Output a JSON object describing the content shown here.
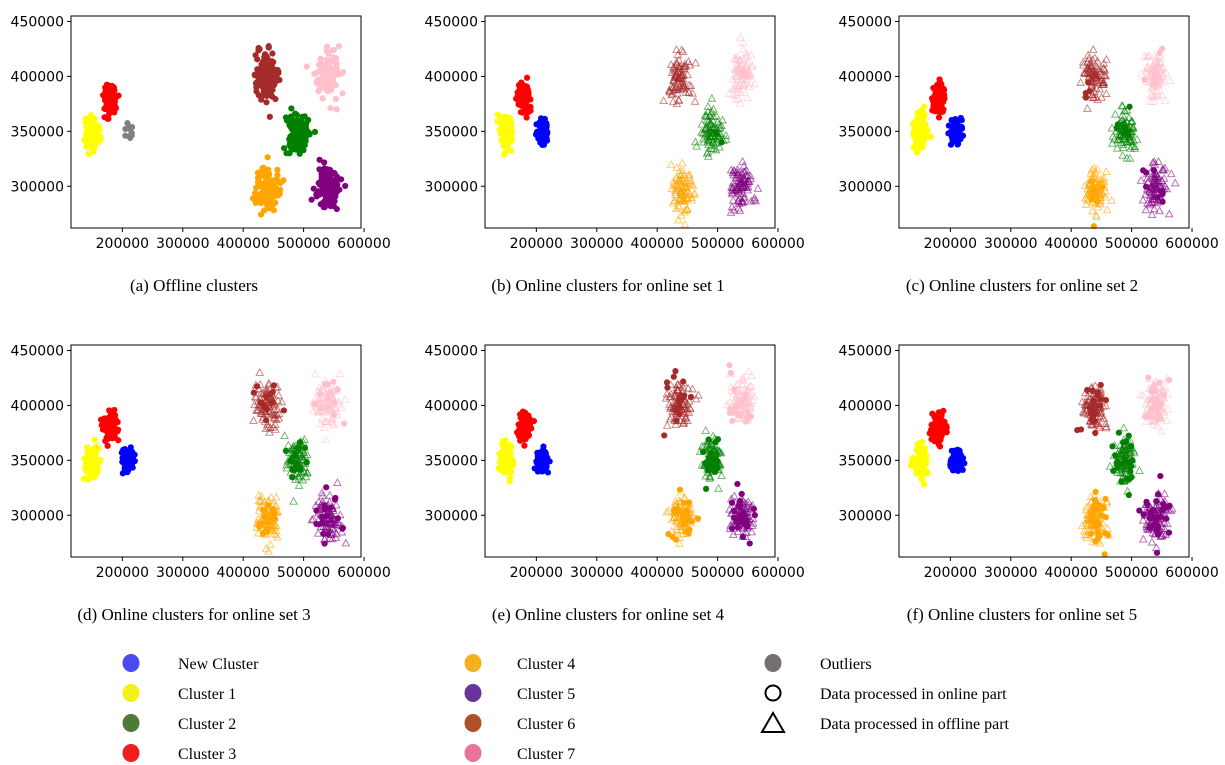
{
  "chart_data": [
    {
      "type": "scatter",
      "caption": "(a)  Offline clusters",
      "xlim": [
        115000,
        595000
      ],
      "ylim": [
        262000,
        455000
      ],
      "x_ticks": [
        200000,
        300000,
        400000,
        500000,
        600000
      ],
      "y_ticks": [
        300000,
        350000,
        400000,
        450000
      ],
      "clusters": [
        {
          "name": "Cluster 1",
          "cx": 150000,
          "cy": 349000,
          "sx": 5000,
          "sy": 7000,
          "n": 140,
          "offline": false,
          "online": true,
          "online_n": 140
        },
        {
          "name": "Cluster 3",
          "cx": 180000,
          "cy": 380000,
          "sx": 5000,
          "sy": 6000,
          "n": 130,
          "offline": false,
          "online": true,
          "online_n": 130
        },
        {
          "name": "Outliers",
          "cx": 210000,
          "cy": 350000,
          "sx": 3500,
          "sy": 5000,
          "n": 14,
          "offline": false,
          "online": true,
          "online_n": 14
        },
        {
          "name": "Cluster 6",
          "cx": 437000,
          "cy": 400000,
          "sx": 10000,
          "sy": 11000,
          "n": 120,
          "offline": false,
          "online": true,
          "online_n": 120
        },
        {
          "name": "Cluster 7",
          "cx": 540000,
          "cy": 402000,
          "sx": 10000,
          "sy": 10000,
          "n": 120,
          "offline": false,
          "online": true,
          "online_n": 120
        },
        {
          "name": "Cluster 2",
          "cx": 490000,
          "cy": 350000,
          "sx": 9000,
          "sy": 10000,
          "n": 120,
          "offline": false,
          "online": true,
          "online_n": 120
        },
        {
          "name": "Cluster 4",
          "cx": 440000,
          "cy": 297000,
          "sx": 9000,
          "sy": 10000,
          "n": 120,
          "offline": false,
          "online": true,
          "online_n": 120
        },
        {
          "name": "Cluster 5",
          "cx": 540000,
          "cy": 299000,
          "sx": 10000,
          "sy": 10000,
          "n": 120,
          "offline": false,
          "online": true,
          "online_n": 120
        }
      ]
    },
    {
      "type": "scatter",
      "caption": "(b)  Online clusters for online set 1",
      "xlim": [
        115000,
        595000
      ],
      "ylim": [
        262000,
        455000
      ],
      "x_ticks": [
        200000,
        300000,
        400000,
        500000,
        600000
      ],
      "y_ticks": [
        300000,
        350000,
        400000,
        450000
      ],
      "clusters": [
        {
          "name": "Cluster 1",
          "cx": 150000,
          "cy": 349000,
          "sx": 5000,
          "sy": 7000,
          "n": 140,
          "offline": false,
          "online": true,
          "online_n": 140
        },
        {
          "name": "Cluster 3",
          "cx": 180000,
          "cy": 380000,
          "sx": 5000,
          "sy": 6000,
          "n": 130,
          "offline": false,
          "online": true,
          "online_n": 130
        },
        {
          "name": "New Cluster",
          "cx": 210000,
          "cy": 350000,
          "sx": 4500,
          "sy": 5000,
          "n": 90,
          "offline": false,
          "online": true,
          "online_n": 90
        },
        {
          "name": "Cluster 6",
          "cx": 437000,
          "cy": 400000,
          "sx": 10000,
          "sy": 11000,
          "n": 90,
          "offline": true,
          "online": false,
          "online_n": 0
        },
        {
          "name": "Cluster 7",
          "cx": 540000,
          "cy": 402000,
          "sx": 10000,
          "sy": 10000,
          "n": 90,
          "offline": true,
          "online": false,
          "online_n": 0
        },
        {
          "name": "Cluster 2",
          "cx": 490000,
          "cy": 350000,
          "sx": 9000,
          "sy": 10000,
          "n": 90,
          "offline": true,
          "online": true,
          "online_n": 2
        },
        {
          "name": "Cluster 4",
          "cx": 440000,
          "cy": 297000,
          "sx": 9000,
          "sy": 10000,
          "n": 90,
          "offline": true,
          "online": false,
          "online_n": 0
        },
        {
          "name": "Cluster 5",
          "cx": 540000,
          "cy": 299000,
          "sx": 10000,
          "sy": 10000,
          "n": 90,
          "offline": true,
          "online": false,
          "online_n": 0
        }
      ]
    },
    {
      "type": "scatter",
      "caption": "(c)  Online clusters for online set 2",
      "xlim": [
        115000,
        595000
      ],
      "ylim": [
        262000,
        455000
      ],
      "x_ticks": [
        200000,
        300000,
        400000,
        500000,
        600000
      ],
      "y_ticks": [
        300000,
        350000,
        400000,
        450000
      ],
      "clusters": [
        {
          "name": "Cluster 1",
          "cx": 150000,
          "cy": 349000,
          "sx": 5000,
          "sy": 7000,
          "n": 140,
          "offline": false,
          "online": true,
          "online_n": 140
        },
        {
          "name": "Cluster 3",
          "cx": 180000,
          "cy": 380000,
          "sx": 5000,
          "sy": 6000,
          "n": 130,
          "offline": false,
          "online": true,
          "online_n": 130
        },
        {
          "name": "New Cluster",
          "cx": 210000,
          "cy": 350000,
          "sx": 4500,
          "sy": 5000,
          "n": 100,
          "offline": false,
          "online": true,
          "online_n": 100
        },
        {
          "name": "Cluster 6",
          "cx": 437000,
          "cy": 400000,
          "sx": 10000,
          "sy": 11000,
          "n": 90,
          "offline": true,
          "online": true,
          "online_n": 4
        },
        {
          "name": "Cluster 7",
          "cx": 540000,
          "cy": 402000,
          "sx": 10000,
          "sy": 10000,
          "n": 90,
          "offline": true,
          "online": true,
          "online_n": 3
        },
        {
          "name": "Cluster 2",
          "cx": 490000,
          "cy": 350000,
          "sx": 9000,
          "sy": 10000,
          "n": 90,
          "offline": true,
          "online": true,
          "online_n": 6
        },
        {
          "name": "Cluster 4",
          "cx": 440000,
          "cy": 297000,
          "sx": 9000,
          "sy": 10000,
          "n": 90,
          "offline": true,
          "online": true,
          "online_n": 6
        },
        {
          "name": "Cluster 5",
          "cx": 540000,
          "cy": 299000,
          "sx": 10000,
          "sy": 10000,
          "n": 90,
          "offline": true,
          "online": true,
          "online_n": 8
        }
      ]
    },
    {
      "type": "scatter",
      "caption": "(d)  Online clusters for online set 3",
      "xlim": [
        115000,
        595000
      ],
      "ylim": [
        262000,
        455000
      ],
      "x_ticks": [
        200000,
        300000,
        400000,
        500000,
        600000
      ],
      "y_ticks": [
        300000,
        350000,
        400000,
        450000
      ],
      "clusters": [
        {
          "name": "Cluster 1",
          "cx": 150000,
          "cy": 349000,
          "sx": 5000,
          "sy": 7000,
          "n": 140,
          "offline": false,
          "online": true,
          "online_n": 140
        },
        {
          "name": "Cluster 3",
          "cx": 180000,
          "cy": 380000,
          "sx": 5000,
          "sy": 6000,
          "n": 130,
          "offline": false,
          "online": true,
          "online_n": 130
        },
        {
          "name": "New Cluster",
          "cx": 210000,
          "cy": 350000,
          "sx": 4500,
          "sy": 5000,
          "n": 110,
          "offline": false,
          "online": true,
          "online_n": 110
        },
        {
          "name": "Cluster 6",
          "cx": 437000,
          "cy": 400000,
          "sx": 10000,
          "sy": 11000,
          "n": 90,
          "offline": true,
          "online": true,
          "online_n": 14
        },
        {
          "name": "Cluster 7",
          "cx": 540000,
          "cy": 402000,
          "sx": 10000,
          "sy": 10000,
          "n": 90,
          "offline": true,
          "online": true,
          "online_n": 12
        },
        {
          "name": "Cluster 2",
          "cx": 490000,
          "cy": 350000,
          "sx": 9000,
          "sy": 10000,
          "n": 90,
          "offline": true,
          "online": true,
          "online_n": 14
        },
        {
          "name": "Cluster 4",
          "cx": 440000,
          "cy": 297000,
          "sx": 9000,
          "sy": 10000,
          "n": 90,
          "offline": true,
          "online": true,
          "online_n": 16
        },
        {
          "name": "Cluster 5",
          "cx": 540000,
          "cy": 299000,
          "sx": 10000,
          "sy": 10000,
          "n": 90,
          "offline": true,
          "online": true,
          "online_n": 18
        }
      ]
    },
    {
      "type": "scatter",
      "caption": "(e)  Online clusters for online set 4",
      "xlim": [
        115000,
        595000
      ],
      "ylim": [
        262000,
        455000
      ],
      "x_ticks": [
        200000,
        300000,
        400000,
        500000,
        600000
      ],
      "y_ticks": [
        300000,
        350000,
        400000,
        450000
      ],
      "clusters": [
        {
          "name": "Cluster 1",
          "cx": 150000,
          "cy": 349000,
          "sx": 5000,
          "sy": 7000,
          "n": 140,
          "offline": false,
          "online": true,
          "online_n": 140
        },
        {
          "name": "Cluster 3",
          "cx": 180000,
          "cy": 380000,
          "sx": 5000,
          "sy": 6000,
          "n": 130,
          "offline": false,
          "online": true,
          "online_n": 130
        },
        {
          "name": "New Cluster",
          "cx": 210000,
          "cy": 350000,
          "sx": 4500,
          "sy": 5000,
          "n": 120,
          "offline": false,
          "online": true,
          "online_n": 120
        },
        {
          "name": "Cluster 6",
          "cx": 437000,
          "cy": 400000,
          "sx": 10000,
          "sy": 11000,
          "n": 90,
          "offline": true,
          "online": true,
          "online_n": 18
        },
        {
          "name": "Cluster 7",
          "cx": 540000,
          "cy": 402000,
          "sx": 10000,
          "sy": 10000,
          "n": 90,
          "offline": true,
          "online": true,
          "online_n": 16
        },
        {
          "name": "Cluster 2",
          "cx": 490000,
          "cy": 350000,
          "sx": 9000,
          "sy": 10000,
          "n": 90,
          "offline": true,
          "online": true,
          "online_n": 20
        },
        {
          "name": "Cluster 4",
          "cx": 440000,
          "cy": 297000,
          "sx": 9000,
          "sy": 10000,
          "n": 90,
          "offline": true,
          "online": true,
          "online_n": 22
        },
        {
          "name": "Cluster 5",
          "cx": 540000,
          "cy": 299000,
          "sx": 10000,
          "sy": 10000,
          "n": 90,
          "offline": true,
          "online": true,
          "online_n": 24
        }
      ]
    },
    {
      "type": "scatter",
      "caption": "(f)  Online clusters for online set 5",
      "xlim": [
        115000,
        595000
      ],
      "ylim": [
        262000,
        455000
      ],
      "x_ticks": [
        200000,
        300000,
        400000,
        500000,
        600000
      ],
      "y_ticks": [
        300000,
        350000,
        400000,
        450000
      ],
      "clusters": [
        {
          "name": "Cluster 1",
          "cx": 150000,
          "cy": 349000,
          "sx": 5000,
          "sy": 7000,
          "n": 140,
          "offline": false,
          "online": true,
          "online_n": 140
        },
        {
          "name": "Cluster 3",
          "cx": 180000,
          "cy": 380000,
          "sx": 5000,
          "sy": 6000,
          "n": 130,
          "offline": false,
          "online": true,
          "online_n": 130
        },
        {
          "name": "New Cluster",
          "cx": 210000,
          "cy": 350000,
          "sx": 4500,
          "sy": 5000,
          "n": 130,
          "offline": false,
          "online": true,
          "online_n": 130
        },
        {
          "name": "Cluster 6",
          "cx": 437000,
          "cy": 400000,
          "sx": 10000,
          "sy": 11000,
          "n": 90,
          "offline": true,
          "online": true,
          "online_n": 22
        },
        {
          "name": "Cluster 7",
          "cx": 540000,
          "cy": 402000,
          "sx": 10000,
          "sy": 10000,
          "n": 90,
          "offline": true,
          "online": true,
          "online_n": 20
        },
        {
          "name": "Cluster 2",
          "cx": 490000,
          "cy": 350000,
          "sx": 9000,
          "sy": 10000,
          "n": 90,
          "offline": true,
          "online": true,
          "online_n": 24
        },
        {
          "name": "Cluster 4",
          "cx": 440000,
          "cy": 297000,
          "sx": 9000,
          "sy": 10000,
          "n": 90,
          "offline": true,
          "online": true,
          "online_n": 26
        },
        {
          "name": "Cluster 5",
          "cx": 540000,
          "cy": 299000,
          "sx": 10000,
          "sy": 10000,
          "n": 90,
          "offline": true,
          "online": true,
          "online_n": 28
        }
      ]
    }
  ],
  "colors": {
    "New Cluster": "#0000ff",
    "Cluster 1": "#ffff00",
    "Cluster 2": "#008000",
    "Cluster 3": "#ff0000",
    "Cluster 4": "#ffa500",
    "Cluster 5": "#800080",
    "Cluster 6": "#a52a2a",
    "Cluster 7": "#ffc0cb",
    "Outliers": "#808080"
  },
  "legend": {
    "columns": [
      [
        {
          "label": "New Cluster",
          "marker": "dot",
          "color": "#4a4aee"
        },
        {
          "label": "Cluster 1",
          "marker": "dot",
          "color": "#f2f218"
        },
        {
          "label": "Cluster 2",
          "marker": "dot",
          "color": "#4f7a35"
        },
        {
          "label": "Cluster 3",
          "marker": "dot",
          "color": "#f01e1e"
        }
      ],
      [
        {
          "label": "Cluster 4",
          "marker": "dot",
          "color": "#f5b01c"
        },
        {
          "label": "Cluster 5",
          "marker": "dot",
          "color": "#6a3399"
        },
        {
          "label": "Cluster 6",
          "marker": "dot",
          "color": "#b0502a"
        },
        {
          "label": "Cluster 7",
          "marker": "dot",
          "color": "#e8739b"
        }
      ],
      [
        {
          "label": "Outliers",
          "marker": "dot",
          "color": "#757070"
        },
        {
          "label": "Data processed in online part",
          "marker": "circle",
          "color": "#000000"
        },
        {
          "label": "Data processed in offline part",
          "marker": "triangle",
          "color": "#000000"
        }
      ]
    ]
  }
}
